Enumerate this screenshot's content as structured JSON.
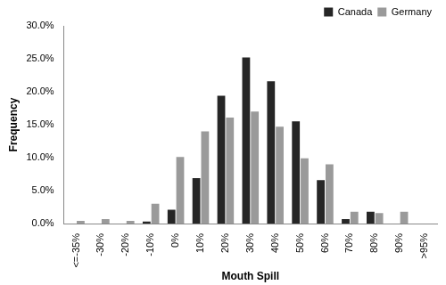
{
  "chart_data": {
    "type": "bar",
    "x_label": "Mouth Spill",
    "y_label": "Frequency",
    "categories": [
      "<=-35%",
      "-30%",
      "-20%",
      "-10%",
      "0%",
      "10%",
      "20%",
      "30%",
      "40%",
      "50%",
      "60%",
      "70%",
      "80%",
      "90%",
      ">95%"
    ],
    "series": [
      {
        "name": "Canada",
        "color": "#262626",
        "values": [
          0,
          0,
          0,
          0.3,
          2.1,
          6.9,
          19.4,
          25.2,
          21.6,
          15.5,
          6.6,
          0.7,
          1.8,
          0,
          0
        ]
      },
      {
        "name": "Germany",
        "color": "#9a9a9a",
        "values": [
          0.4,
          0.7,
          0.4,
          3.0,
          10.1,
          14.0,
          16.1,
          17.0,
          14.7,
          9.9,
          9.0,
          1.8,
          1.6,
          1.8,
          0
        ]
      }
    ],
    "ylim": [
      0,
      30
    ],
    "yticks": [
      {
        "value": 0,
        "label": "0.0%"
      },
      {
        "value": 5,
        "label": "5.0%"
      },
      {
        "value": 10,
        "label": "10.0%"
      },
      {
        "value": 15,
        "label": "15.0%"
      },
      {
        "value": 20,
        "label": "20.0%"
      },
      {
        "value": 25,
        "label": "25.0%"
      },
      {
        "value": 30,
        "label": "30.0%"
      }
    ],
    "grid": false,
    "legend": "top-right"
  }
}
